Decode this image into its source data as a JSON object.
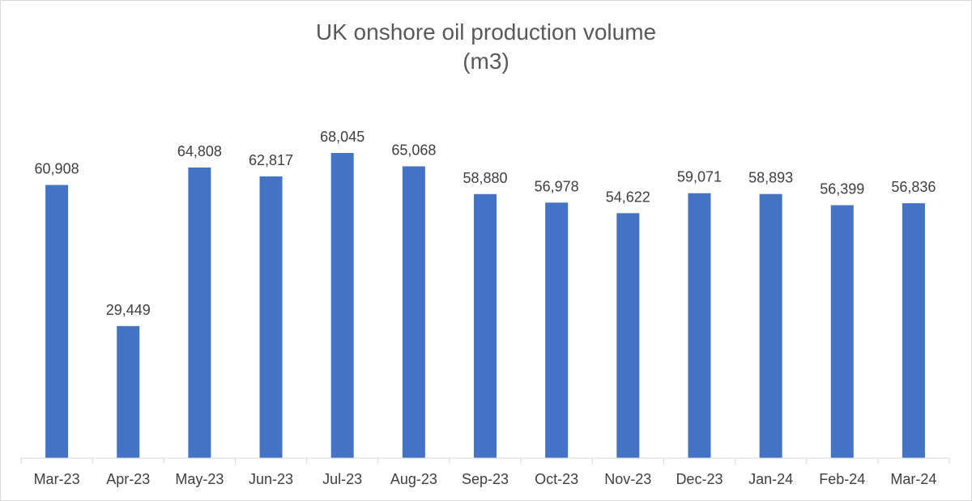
{
  "chart_data": {
    "type": "bar",
    "title": "UK onshore oil production volume",
    "subtitle": "(m3)",
    "categories": [
      "Mar-23",
      "Apr-23",
      "May-23",
      "Jun-23",
      "Jul-23",
      "Aug-23",
      "Sep-23",
      "Oct-23",
      "Nov-23",
      "Dec-23",
      "Jan-24",
      "Feb-24",
      "Mar-24"
    ],
    "values": [
      60908,
      29449,
      64808,
      62817,
      68045,
      65068,
      58880,
      56978,
      54622,
      59071,
      58893,
      56399,
      56836
    ],
    "data_labels": [
      "60,908",
      "29,449",
      "64,808",
      "62,817",
      "68,045",
      "65,068",
      "58,880",
      "56,978",
      "54,622",
      "59,071",
      "58,893",
      "56,399",
      "56,836"
    ],
    "ylim": [
      0,
      68045
    ],
    "grid": false,
    "legend": "none",
    "colors": {
      "bar": "#4472C4",
      "axis": "#d9d9d9",
      "text": "#404040",
      "title": "#595959"
    }
  }
}
